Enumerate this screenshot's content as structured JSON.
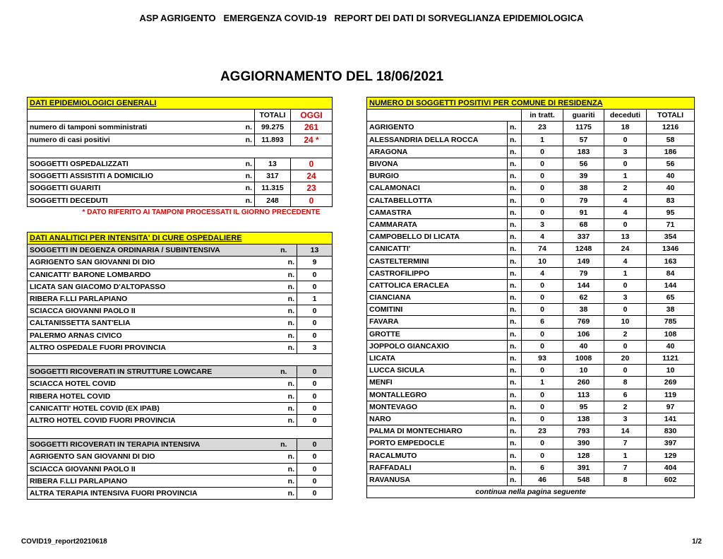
{
  "header": {
    "title": "ASP AGRIGENTO   EMERGENZA COVID-19   REPORT DEI DATI DI SORVEGLIANZA EPIDEMIOLOGICA",
    "subtitle": "AGGIORNAMENTO DEL 18/06/2021"
  },
  "unit": "n.",
  "general": {
    "title": "DATI EPIDEMIOLOGICI GENERALI",
    "headers": [
      "TOTALI",
      "OGGI"
    ],
    "rows": [
      {
        "label": "numero di tamponi somministrati",
        "total": "99.275",
        "today": "261"
      },
      {
        "label": "numero di casi positivi",
        "total": "11.893",
        "today": "24 *"
      },
      null,
      {
        "label": "SOGGETTI OSPEDALIZZATI",
        "total": "13",
        "today": "0"
      },
      {
        "label": "SOGGETTI ASSISTITI A DOMICILIO",
        "total": "317",
        "today": "24"
      },
      {
        "label": "SOGGETTI GUARITI",
        "total": "11.315",
        "today": "23"
      },
      {
        "label": "SOGGETTI DECEDUTI",
        "total": "248",
        "today": "0"
      }
    ],
    "note": "* DATO RIFERITO AI TAMPONI PROCESSATI IL GIORNO PRECEDENTE"
  },
  "hospital": {
    "title": "DATI ANALITICI PER INTENSITA' DI CURE OSPEDALIERE",
    "rows": [
      {
        "label": "SOGGETTI IN DEGENZA ORDINARIA / SUBINTENSIVA",
        "value": "13",
        "group": true
      },
      {
        "label": "AGRIGENTO SAN GIOVANNI DI DIO",
        "value": "9"
      },
      {
        "label": "CANICATTI'  BARONE LOMBARDO",
        "value": "0"
      },
      {
        "label": "LICATA SAN GIACOMO D'ALTOPASSO",
        "value": "0"
      },
      {
        "label": "RIBERA F.LLI PARLAPIANO",
        "value": "1"
      },
      {
        "label": "SCIACCA GIOVANNI PAOLO II",
        "value": "0"
      },
      {
        "label": "CALTANISSETTA SANT'ELIA",
        "value": "0"
      },
      {
        "label": "PALERMO ARNAS CIVICO",
        "value": "0"
      },
      {
        "label": "ALTRO OSPEDALE FUORI PROVINCIA",
        "value": "3"
      },
      null,
      {
        "label": "SOGGETTI RICOVERATI IN STRUTTURE LOWCARE",
        "value": "0",
        "group": true
      },
      {
        "label": "SCIACCA HOTEL COVID",
        "value": "0"
      },
      {
        "label": "RIBERA HOTEL COVID",
        "value": "0"
      },
      {
        "label": "CANICATTI' HOTEL COVID (EX IPAB)",
        "value": "0"
      },
      {
        "label": "ALTRO HOTEL COVID FUORI PROVINCIA",
        "value": "0"
      },
      null,
      {
        "label": "SOGGETTI RICOVERATI IN TERAPIA INTENSIVA",
        "value": "0",
        "group": true
      },
      {
        "label": "AGRIGENTO SAN GIOVANNI DI DIO",
        "value": "0"
      },
      {
        "label": "SCIACCA GIOVANNI PAOLO II",
        "value": "0"
      },
      {
        "label": "RIBERA F.LLI PARLAPIANO",
        "value": "0"
      },
      {
        "label": "ALTRA TERAPIA INTENSIVA FUORI PROVINCIA",
        "value": "0"
      }
    ]
  },
  "municipalities": {
    "title": "NUMERO DI SOGGETTI POSITIVI PER COMUNE DI RESIDENZA",
    "headers": [
      "in tratt.",
      "guariti",
      "deceduti",
      "TOTALI"
    ],
    "rows": [
      [
        "AGRIGENTO",
        "23",
        "1175",
        "18",
        "1216"
      ],
      [
        "ALESSANDRIA DELLA ROCCA",
        "1",
        "57",
        "0",
        "58"
      ],
      [
        "ARAGONA",
        "0",
        "183",
        "3",
        "186"
      ],
      [
        "BIVONA",
        "0",
        "56",
        "0",
        "56"
      ],
      [
        "BURGIO",
        "0",
        "39",
        "1",
        "40"
      ],
      [
        "CALAMONACI",
        "0",
        "38",
        "2",
        "40"
      ],
      [
        "CALTABELLOTTA",
        "0",
        "79",
        "4",
        "83"
      ],
      [
        "CAMASTRA",
        "0",
        "91",
        "4",
        "95"
      ],
      [
        "CAMMARATA",
        "3",
        "68",
        "0",
        "71"
      ],
      [
        "CAMPOBELLO DI LICATA",
        "4",
        "337",
        "13",
        "354"
      ],
      [
        "CANICATTI'",
        "74",
        "1248",
        "24",
        "1346"
      ],
      [
        "CASTELTERMINI",
        "10",
        "149",
        "4",
        "163"
      ],
      [
        "CASTROFILIPPO",
        "4",
        "79",
        "1",
        "84"
      ],
      [
        "CATTOLICA ERACLEA",
        "0",
        "144",
        "0",
        "144"
      ],
      [
        "CIANCIANA",
        "0",
        "62",
        "3",
        "65"
      ],
      [
        "COMITINI",
        "0",
        "38",
        "0",
        "38"
      ],
      [
        "FAVARA",
        "6",
        "769",
        "10",
        "785"
      ],
      [
        "GROTTE",
        "0",
        "106",
        "2",
        "108"
      ],
      [
        "JOPPOLO GIANCAXIO",
        "0",
        "40",
        "0",
        "40"
      ],
      [
        "LICATA",
        "93",
        "1008",
        "20",
        "1121"
      ],
      [
        "LUCCA SICULA",
        "0",
        "10",
        "0",
        "10"
      ],
      [
        "MENFI",
        "1",
        "260",
        "8",
        "269"
      ],
      [
        "MONTALLEGRO",
        "0",
        "113",
        "6",
        "119"
      ],
      [
        "MONTEVAGO",
        "0",
        "95",
        "2",
        "97"
      ],
      [
        "NARO",
        "0",
        "138",
        "3",
        "141"
      ],
      [
        "PALMA DI MONTECHIARO",
        "23",
        "793",
        "14",
        "830"
      ],
      [
        "PORTO EMPEDOCLE",
        "0",
        "390",
        "7",
        "397"
      ],
      [
        "RACALMUTO",
        "0",
        "128",
        "1",
        "129"
      ],
      [
        "RAFFADALI",
        "6",
        "391",
        "7",
        "404"
      ],
      [
        "RAVANUSA",
        "46",
        "548",
        "8",
        "602"
      ]
    ],
    "continuation": "continua nella pagina seguente"
  },
  "footer": {
    "file": "COVID19_report20210618",
    "page": "1/2"
  }
}
